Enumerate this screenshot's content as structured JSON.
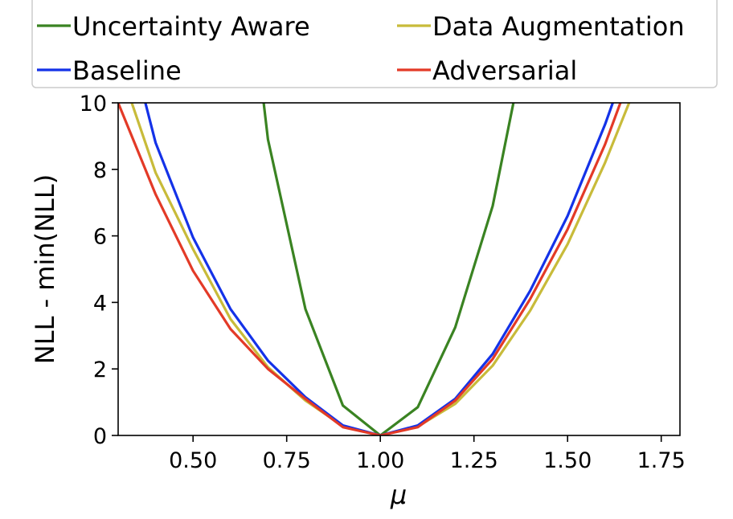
{
  "chart_data": {
    "type": "line",
    "xlabel": "μ",
    "ylabel": "NLL - min(NLL)",
    "xlim": [
      0.3,
      1.8
    ],
    "ylim": [
      0,
      10
    ],
    "xticks": [
      0.5,
      0.75,
      1.0,
      1.25,
      1.5,
      1.75
    ],
    "xtick_labels": [
      "0.50",
      "0.75",
      "1.00",
      "1.25",
      "1.50",
      "1.75"
    ],
    "yticks": [
      0,
      2,
      4,
      6,
      8,
      10
    ],
    "ytick_labels": [
      "0",
      "2",
      "4",
      "6",
      "8",
      "10"
    ],
    "legend_position": "top",
    "series": [
      {
        "name": "Uncertainty Aware",
        "color": "#3a8322",
        "x": [
          0.6,
          0.7,
          0.8,
          0.9,
          1.0,
          1.1,
          1.2,
          1.3,
          1.4
        ],
        "y": [
          18.5,
          8.9,
          3.8,
          0.9,
          0.0,
          0.85,
          3.25,
          6.9,
          12.5
        ]
      },
      {
        "name": "Data Augmentation",
        "color": "#c8bb3a",
        "x": [
          0.3,
          0.4,
          0.5,
          0.6,
          0.7,
          0.8,
          0.9,
          1.0,
          1.1,
          1.2,
          1.3,
          1.4,
          1.5,
          1.6,
          1.7
        ],
        "y": [
          11.2,
          7.9,
          5.6,
          3.5,
          2.05,
          1.05,
          0.28,
          0.0,
          0.27,
          0.95,
          2.1,
          3.75,
          5.75,
          8.2,
          11.0
        ]
      },
      {
        "name": "Baseline",
        "color": "#1432e8",
        "x": [
          0.3,
          0.4,
          0.5,
          0.6,
          0.7,
          0.8,
          0.9,
          1.0,
          1.1,
          1.2,
          1.3,
          1.4,
          1.5,
          1.6,
          1.7
        ],
        "y": [
          13.2,
          8.8,
          5.95,
          3.8,
          2.25,
          1.15,
          0.3,
          0.0,
          0.3,
          1.1,
          2.45,
          4.35,
          6.6,
          9.35,
          12.5
        ]
      },
      {
        "name": "Adversarial",
        "color": "#e33a27",
        "x": [
          0.3,
          0.4,
          0.5,
          0.6,
          0.7,
          0.8,
          0.9,
          1.0,
          1.1,
          1.2,
          1.3,
          1.4,
          1.5,
          1.6,
          1.7
        ],
        "y": [
          10.0,
          7.25,
          4.95,
          3.2,
          2.0,
          1.1,
          0.25,
          0.0,
          0.25,
          1.05,
          2.3,
          4.1,
          6.2,
          8.75,
          11.8
        ]
      }
    ]
  }
}
